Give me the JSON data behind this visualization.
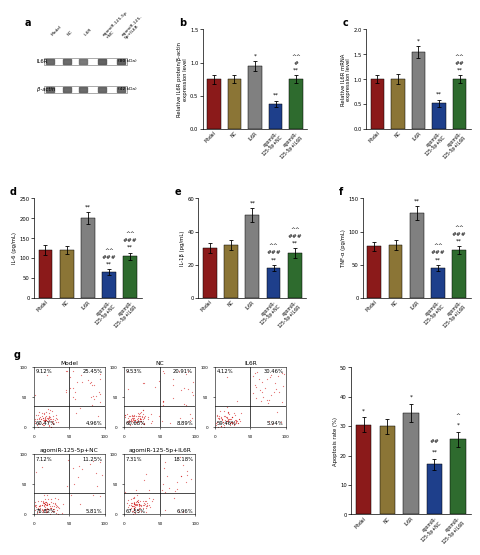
{
  "panel_b": {
    "categories": [
      "Model",
      "NC",
      "IL6R",
      "agomiR-125-5p+NC",
      "agomiR-125-5p+IL6R"
    ],
    "values": [
      0.75,
      0.75,
      0.95,
      0.38,
      0.75
    ],
    "errors": [
      0.07,
      0.06,
      0.07,
      0.05,
      0.06
    ],
    "colors": [
      "#8B1A1A",
      "#8B7536",
      "#808080",
      "#1E3F8B",
      "#2E6B2E"
    ],
    "ylabel": "Relative IL6R protein/β-actin\nexpression level",
    "ylim": [
      0,
      1.5
    ],
    "yticks": [
      0.0,
      0.5,
      1.0,
      1.5
    ],
    "sig_above": [
      {
        "bar": 2,
        "text": "*",
        "color": "black"
      },
      {
        "bar": 3,
        "text": "**",
        "color": "black"
      },
      {
        "bar": 4,
        "text": "**\n#\n^^",
        "color": "black"
      }
    ],
    "label": "b"
  },
  "panel_c": {
    "categories": [
      "Model",
      "NC",
      "IL6R",
      "agomiR-125-5p+NC",
      "agomiR-125-5p+IL6R"
    ],
    "values": [
      1.0,
      1.0,
      1.55,
      0.52,
      1.0
    ],
    "errors": [
      0.08,
      0.1,
      0.12,
      0.07,
      0.08
    ],
    "colors": [
      "#8B1A1A",
      "#8B7536",
      "#808080",
      "#1E3F8B",
      "#2E6B2E"
    ],
    "ylabel": "Relative IL6R mRNA\nexpression level",
    "ylim": [
      0,
      2.0
    ],
    "yticks": [
      0.0,
      0.5,
      1.0,
      1.5,
      2.0
    ],
    "sig_above": [
      {
        "bar": 2,
        "text": "*",
        "color": "black"
      },
      {
        "bar": 3,
        "text": "**",
        "color": "black"
      },
      {
        "bar": 4,
        "text": "**\n##\n^^",
        "color": "black"
      }
    ],
    "label": "c"
  },
  "panel_d": {
    "categories": [
      "Model",
      "NC",
      "IL6R",
      "agomiR-125-5p+NC",
      "agomiR-125-5p+IL6R"
    ],
    "values": [
      120,
      120,
      200,
      65,
      105
    ],
    "errors": [
      12,
      10,
      15,
      7,
      9
    ],
    "colors": [
      "#8B1A1A",
      "#8B7536",
      "#808080",
      "#1E3F8B",
      "#2E6B2E"
    ],
    "ylabel": "IL-6 (pg/mL)",
    "ylim": [
      0,
      250
    ],
    "yticks": [
      0,
      50,
      100,
      150,
      200,
      250
    ],
    "sig_above": [
      {
        "bar": 2,
        "text": "**",
        "color": "black"
      },
      {
        "bar": 3,
        "text": "**\n###\n^^",
        "color": "black"
      },
      {
        "bar": 4,
        "text": "**\n###\n^^",
        "color": "black"
      }
    ],
    "label": "d"
  },
  "panel_e": {
    "categories": [
      "Model",
      "NC",
      "IL6R",
      "agomiR-125-5p+NC",
      "agomiR-125-5p+IL6R"
    ],
    "values": [
      30,
      32,
      50,
      18,
      27
    ],
    "errors": [
      3,
      3,
      4,
      2,
      3
    ],
    "colors": [
      "#8B1A1A",
      "#8B7536",
      "#808080",
      "#1E3F8B",
      "#2E6B2E"
    ],
    "ylabel": "IL-1β (pg/mL)",
    "ylim": [
      0,
      60
    ],
    "yticks": [
      0,
      20,
      40,
      60
    ],
    "sig_above": [
      {
        "bar": 2,
        "text": "**",
        "color": "black"
      },
      {
        "bar": 3,
        "text": "**\n###\n^^",
        "color": "black"
      },
      {
        "bar": 4,
        "text": "**\n###\n^^",
        "color": "black"
      }
    ],
    "label": "e"
  },
  "panel_f": {
    "categories": [
      "Model",
      "NC",
      "IL6R",
      "agomiR-125-5p+NC",
      "agomiR-125-5p+IL6R"
    ],
    "values": [
      78,
      80,
      128,
      45,
      72
    ],
    "errors": [
      7,
      7,
      10,
      5,
      6
    ],
    "colors": [
      "#8B1A1A",
      "#8B7536",
      "#808080",
      "#1E3F8B",
      "#2E6B2E"
    ],
    "ylabel": "TNF-α (pg/mL)",
    "ylim": [
      0,
      150
    ],
    "yticks": [
      0,
      50,
      100,
      150
    ],
    "sig_above": [
      {
        "bar": 2,
        "text": "**",
        "color": "black"
      },
      {
        "bar": 3,
        "text": "**\n###\n^^",
        "color": "black"
      },
      {
        "bar": 4,
        "text": "**\n###\n^^",
        "color": "black"
      }
    ],
    "label": "f"
  },
  "panel_g_apoptosis": {
    "categories": [
      "Model",
      "NC",
      "IL6R",
      "agomiR-125-5p+NC",
      "agomiR-125-5p+IL6R"
    ],
    "values": [
      30.5,
      30.0,
      34.5,
      17.0,
      25.5
    ],
    "errors": [
      2.5,
      2.5,
      3.0,
      2.0,
      2.5
    ],
    "colors": [
      "#8B1A1A",
      "#8B7536",
      "#808080",
      "#1E3F8B",
      "#2E6B2E"
    ],
    "ylabel": "Apoptosis rate (%)",
    "ylim": [
      0,
      50
    ],
    "yticks": [
      0,
      10,
      20,
      30,
      40,
      50
    ],
    "sig_above": [
      {
        "bar": 0,
        "text": "*",
        "color": "black"
      },
      {
        "bar": 2,
        "text": "*",
        "color": "black"
      },
      {
        "bar": 3,
        "text": "**\n##",
        "color": "black"
      },
      {
        "bar": 4,
        "text": "*\n^",
        "color": "black"
      }
    ],
    "label": ""
  },
  "flow_data": {
    "Model": {
      "UL": 9.12,
      "UR": 25.45,
      "LL": 60.47,
      "LR": 4.96
    },
    "NC": {
      "UL": 9.53,
      "UR": 20.91,
      "LL": 60.68,
      "LR": 8.89
    },
    "IL6R": {
      "UL": 4.12,
      "UR": 30.46,
      "LL": 59.46,
      "LR": 5.94
    },
    "agomiR-125-5p+NC": {
      "UL": 7.12,
      "UR": 11.25,
      "LL": 75.82,
      "LR": 5.81
    },
    "agomiR-125-5p+IL6R": {
      "UL": 7.31,
      "UR": 18.18,
      "LL": 67.55,
      "LR": 6.96
    }
  },
  "flow_titles": [
    "Model",
    "NC",
    "IL6R",
    "agomiR-125-5p+NC",
    "agomiR-125-5p+IL6R"
  ],
  "wb_label": "a",
  "bar_colors": [
    "#8B1A1A",
    "#8B7536",
    "#808080",
    "#1E3F8B",
    "#2E6B2E"
  ],
  "flow_dot_color": "#CC0000"
}
